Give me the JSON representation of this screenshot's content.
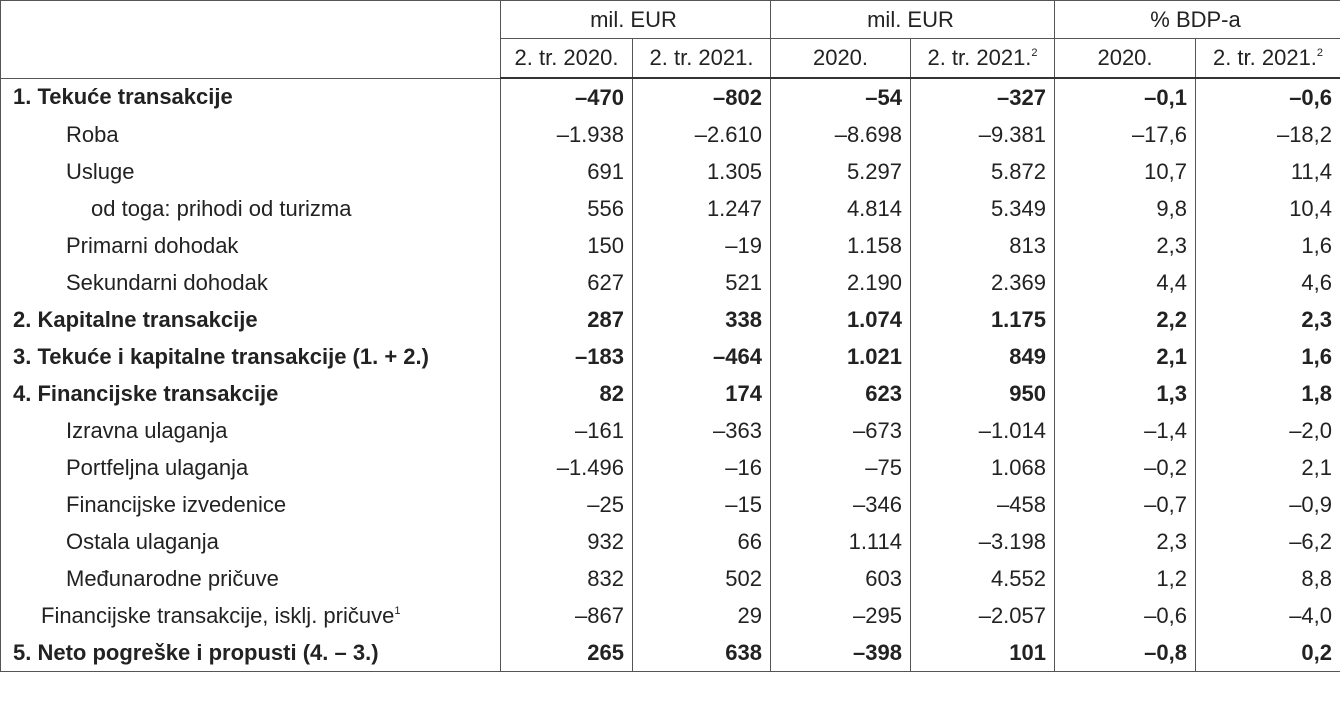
{
  "table": {
    "header_groups": [
      "mil. EUR",
      "mil. EUR",
      "% BDP-a"
    ],
    "columns": [
      {
        "text": "2. tr. 2020."
      },
      {
        "text": "2. tr. 2021."
      },
      {
        "text": "2020."
      },
      {
        "text": "2. tr. 2021.",
        "sup": "2"
      },
      {
        "text": "2020."
      },
      {
        "text": "2. tr. 2021.",
        "sup": "2"
      }
    ],
    "rows": [
      {
        "label": "1. Tekuće transakcije",
        "level": 0,
        "bold": true,
        "values": [
          "–470",
          "–802",
          "–54",
          "–327",
          "–0,1",
          "–0,6"
        ]
      },
      {
        "label": "Roba",
        "level": 2,
        "bold": false,
        "values": [
          "–1.938",
          "–2.610",
          "–8.698",
          "–9.381",
          "–17,6",
          "–18,2"
        ]
      },
      {
        "label": "Usluge",
        "level": 2,
        "bold": false,
        "values": [
          "691",
          "1.305",
          "5.297",
          "5.872",
          "10,7",
          "11,4"
        ]
      },
      {
        "label": "od toga: prihodi od turizma",
        "level": 3,
        "bold": false,
        "values": [
          "556",
          "1.247",
          "4.814",
          "5.349",
          "9,8",
          "10,4"
        ]
      },
      {
        "label": "Primarni dohodak",
        "level": 2,
        "bold": false,
        "values": [
          "150",
          "–19",
          "1.158",
          "813",
          "2,3",
          "1,6"
        ]
      },
      {
        "label": "Sekundarni dohodak",
        "level": 2,
        "bold": false,
        "values": [
          "627",
          "521",
          "2.190",
          "2.369",
          "4,4",
          "4,6"
        ]
      },
      {
        "label": "2. Kapitalne transakcije",
        "level": 0,
        "bold": true,
        "values": [
          "287",
          "338",
          "1.074",
          "1.175",
          "2,2",
          "2,3"
        ]
      },
      {
        "label": "3. Tekuće i kapitalne transakcije (1. + 2.)",
        "level": 0,
        "bold": true,
        "values": [
          "–183",
          "–464",
          "1.021",
          "849",
          "2,1",
          "1,6"
        ]
      },
      {
        "label": "4. Financijske transakcije",
        "level": 0,
        "bold": true,
        "values": [
          "82",
          "174",
          "623",
          "950",
          "1,3",
          "1,8"
        ]
      },
      {
        "label": "Izravna ulaganja",
        "level": 2,
        "bold": false,
        "values": [
          "–161",
          "–363",
          "–673",
          "–1.014",
          "–1,4",
          "–2,0"
        ]
      },
      {
        "label": "Portfeljna ulaganja",
        "level": 2,
        "bold": false,
        "values": [
          "–1.496",
          "–16",
          "–75",
          "1.068",
          "–0,2",
          "2,1"
        ]
      },
      {
        "label": "Financijske izvedenice",
        "level": 2,
        "bold": false,
        "values": [
          "–25",
          "–15",
          "–346",
          "–458",
          "–0,7",
          "–0,9"
        ]
      },
      {
        "label": "Ostala ulaganja",
        "level": 2,
        "bold": false,
        "values": [
          "932",
          "66",
          "1.114",
          "–3.198",
          "2,3",
          "–6,2"
        ]
      },
      {
        "label": "Međunarodne pričuve",
        "level": 2,
        "bold": false,
        "values": [
          "832",
          "502",
          "603",
          "4.552",
          "1,2",
          "8,8"
        ]
      },
      {
        "label": "Financijske transakcije, isklj. pričuve",
        "sup": "1",
        "level": 1,
        "bold": false,
        "values": [
          "–867",
          "29",
          "–295",
          "–2.057",
          "–0,6",
          "–4,0"
        ]
      },
      {
        "label": "5. Neto pogreške i propusti (4. – 3.)",
        "level": 0,
        "bold": true,
        "values": [
          "265",
          "638",
          "–398",
          "101",
          "–0,8",
          "0,2"
        ]
      }
    ]
  }
}
